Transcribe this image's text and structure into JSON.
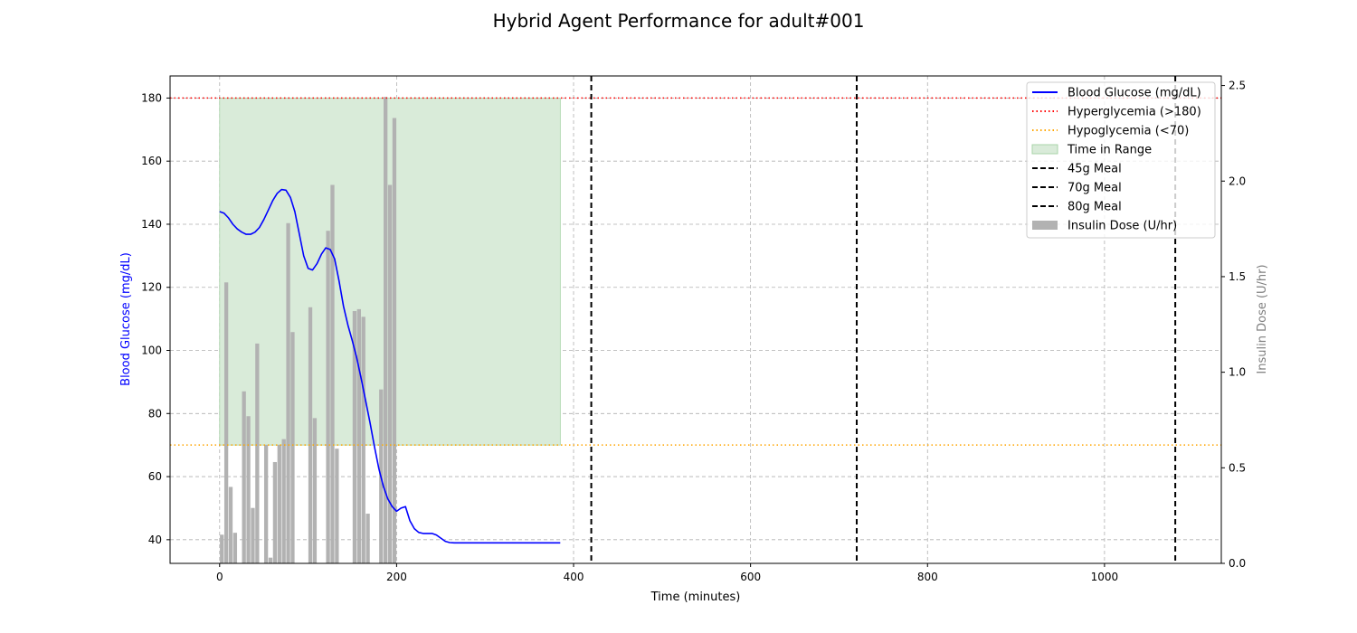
{
  "chart_data": {
    "type": "line",
    "title": "Hybrid Agent Performance for adult#001",
    "xlabel": "Time (minutes)",
    "ylabel": "Blood Glucose (mg/dL)",
    "ylabel_right": "Insulin Dose (U/hr)",
    "xlim": [
      -56,
      1132
    ],
    "ylim": [
      32.5,
      187
    ],
    "ylim_right": [
      0,
      2.55
    ],
    "xticks": [
      0,
      200,
      400,
      600,
      800,
      1000
    ],
    "yticks": [
      40,
      60,
      80,
      100,
      120,
      140,
      160,
      180
    ],
    "yticks_right": [
      0.0,
      0.5,
      1.0,
      1.5,
      2.0,
      2.5
    ],
    "grid": true,
    "legend_position": "top-right",
    "colors": {
      "glucose": "#0000ff",
      "hyper": "#ff0000",
      "hypo": "#ffa500",
      "range_fill": "#d9ebd9",
      "range_edge": "#a9d4a9",
      "meal": "#000000",
      "insulin": "#b2b2b2",
      "left_axis_label": "#0000ff",
      "right_axis_label": "#808080"
    },
    "legend": [
      {
        "label": "Blood Glucose (mg/dL)",
        "kind": "line"
      },
      {
        "label": "Hyperglycemia (>180)",
        "kind": "dotted-red"
      },
      {
        "label": "Hypoglycemia (<70)",
        "kind": "dotted-orange"
      },
      {
        "label": "Time in Range",
        "kind": "patch"
      },
      {
        "label": "45g Meal",
        "kind": "dashed"
      },
      {
        "label": "70g Meal",
        "kind": "dashed"
      },
      {
        "label": "80g Meal",
        "kind": "dashed"
      },
      {
        "label": "Insulin Dose (U/hr)",
        "kind": "bar"
      }
    ],
    "thresholds": {
      "hyper": 180,
      "hypo": 70
    },
    "time_in_range": {
      "x_start": 0,
      "x_end": 385,
      "y_low": 70,
      "y_high": 180
    },
    "meals": [
      {
        "label": "45g Meal",
        "x": 420
      },
      {
        "label": "70g Meal",
        "x": 720
      },
      {
        "label": "80g Meal",
        "x": 1080
      }
    ],
    "series": [
      {
        "name": "Blood Glucose (mg/dL)",
        "x": [
          0,
          5,
          10,
          15,
          20,
          25,
          30,
          35,
          40,
          45,
          50,
          55,
          60,
          65,
          70,
          75,
          80,
          85,
          90,
          95,
          100,
          105,
          110,
          115,
          120,
          125,
          130,
          135,
          140,
          145,
          150,
          155,
          160,
          165,
          170,
          175,
          180,
          185,
          190,
          195,
          200,
          205,
          210,
          215,
          220,
          225,
          230,
          235,
          240,
          245,
          250,
          255,
          260,
          265,
          270,
          275,
          280,
          285,
          290,
          295,
          300,
          310,
          330,
          350,
          370,
          385
        ],
        "y": [
          144,
          143.5,
          142,
          140,
          138.5,
          137.5,
          136.8,
          136.8,
          137.5,
          139,
          141.5,
          144.5,
          147.5,
          149.8,
          151,
          150.8,
          148.5,
          144,
          137,
          130,
          126,
          125.5,
          127.5,
          130.5,
          132.5,
          132,
          129,
          122,
          114,
          108,
          103,
          97.5,
          91,
          84,
          77,
          69.5,
          62.5,
          57,
          53,
          50.5,
          49,
          50,
          50.5,
          46,
          43.5,
          42.3,
          42,
          42,
          42,
          41.5,
          40.5,
          39.5,
          39.1,
          39,
          39,
          39,
          39,
          39,
          39,
          39,
          39,
          39,
          39,
          39,
          39,
          39
        ]
      },
      {
        "name": "Insulin Dose (U/hr)",
        "x": [
          0,
          5,
          10,
          15,
          20,
          25,
          30,
          35,
          40,
          45,
          50,
          55,
          60,
          65,
          70,
          75,
          80,
          85,
          90,
          95,
          100,
          105,
          110,
          115,
          120,
          125,
          130,
          135,
          140,
          145,
          150,
          155,
          160,
          165,
          170,
          175,
          180,
          185,
          190,
          195,
          200
        ],
        "values": [
          0.15,
          1.47,
          0.4,
          0.16,
          0,
          0.9,
          0.77,
          0.29,
          1.15,
          0,
          0.62,
          0.03,
          0.53,
          0.62,
          0.65,
          1.78,
          1.21,
          0,
          0,
          0,
          1.34,
          0.76,
          0,
          0,
          1.74,
          1.98,
          0.6,
          0,
          0,
          0,
          1.32,
          1.33,
          1.29,
          0.26,
          0,
          0,
          0.91,
          2.44,
          1.98,
          2.33,
          0
        ]
      }
    ]
  }
}
